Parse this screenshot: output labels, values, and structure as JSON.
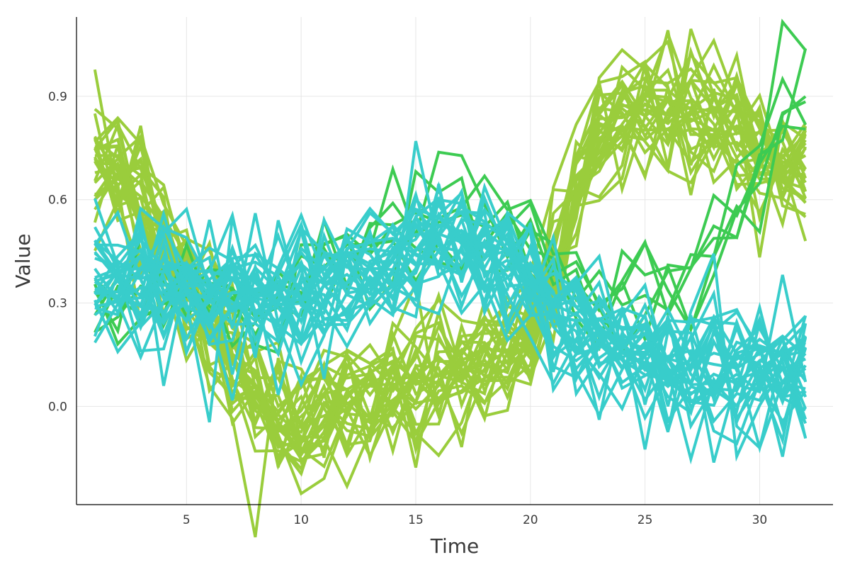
{
  "chart_data": {
    "type": "line",
    "xlabel": "Time",
    "ylabel": "Value",
    "xlim": [
      0.2,
      33.2
    ],
    "ylim": [
      -0.285,
      1.13
    ],
    "xticks": [
      5,
      10,
      15,
      20,
      25,
      30
    ],
    "yticks": [
      0.0,
      0.3,
      0.6,
      0.9
    ],
    "ytick_labels": [
      "0.0",
      "0.3",
      "0.6",
      "0.9"
    ],
    "grid": true,
    "legend": "none",
    "x": [
      1,
      2,
      3,
      4,
      5,
      6,
      7,
      8,
      9,
      10,
      11,
      12,
      13,
      14,
      15,
      16,
      17,
      18,
      19,
      20,
      21,
      22,
      23,
      24,
      25,
      26,
      27,
      28,
      29,
      30,
      31,
      32
    ],
    "groups": [
      {
        "color": "#9ACD3C",
        "count": 30,
        "noise": 0.1,
        "mean": [
          0.7,
          0.68,
          0.64,
          0.5,
          0.35,
          0.22,
          0.12,
          0.04,
          0.0,
          -0.02,
          0.0,
          0.02,
          0.04,
          0.06,
          0.08,
          0.09,
          0.1,
          0.12,
          0.15,
          0.22,
          0.42,
          0.62,
          0.76,
          0.84,
          0.88,
          0.88,
          0.86,
          0.82,
          0.78,
          0.72,
          0.68,
          0.64
        ]
      },
      {
        "color": "#3DCB52",
        "count": 6,
        "noise": 0.085,
        "mean": [
          0.32,
          0.34,
          0.35,
          0.33,
          0.32,
          0.31,
          0.3,
          0.3,
          0.31,
          0.33,
          0.38,
          0.42,
          0.46,
          0.52,
          0.54,
          0.56,
          0.55,
          0.54,
          0.52,
          0.48,
          0.42,
          0.36,
          0.31,
          0.3,
          0.31,
          0.32,
          0.34,
          0.44,
          0.58,
          0.74,
          0.86,
          0.92
        ]
      },
      {
        "color": "#38CDCB",
        "count": 30,
        "noise": 0.1,
        "mean": [
          0.38,
          0.38,
          0.37,
          0.36,
          0.35,
          0.34,
          0.33,
          0.32,
          0.31,
          0.31,
          0.32,
          0.34,
          0.38,
          0.43,
          0.47,
          0.48,
          0.48,
          0.46,
          0.42,
          0.36,
          0.3,
          0.24,
          0.19,
          0.15,
          0.13,
          0.12,
          0.11,
          0.1,
          0.1,
          0.1,
          0.09,
          0.09
        ]
      }
    ]
  }
}
